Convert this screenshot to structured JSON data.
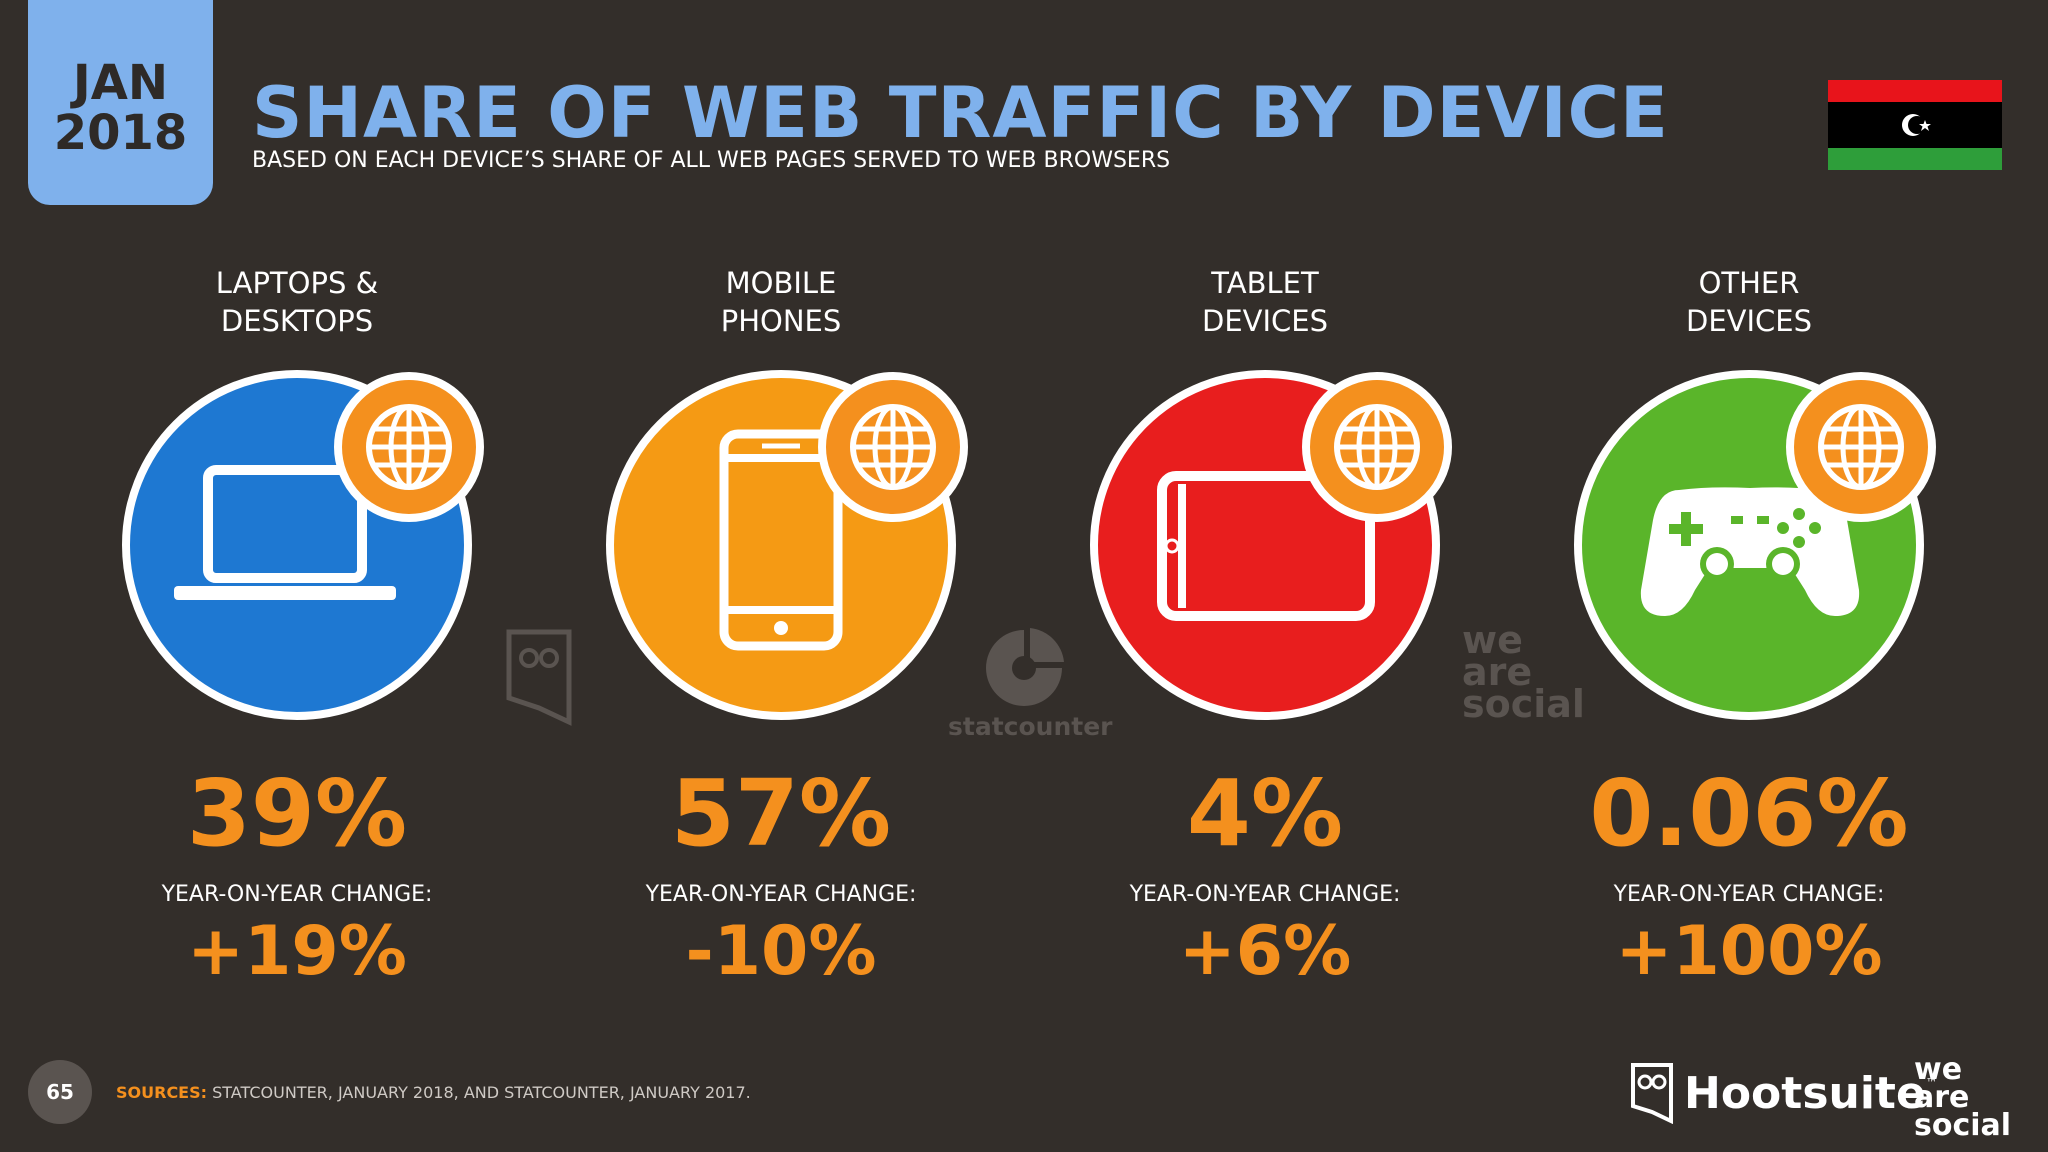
{
  "date": {
    "month": "JAN",
    "year": "2018"
  },
  "title": "SHARE OF WEB TRAFFIC BY DEVICE",
  "subtitle": "BASED ON EACH DEVICE’S SHARE OF ALL WEB PAGES SERVED TO WEB BROWSERS",
  "flag": {
    "top_color": "#e8141b",
    "middle_color": "#000000",
    "bottom_color": "#2e9e3a",
    "symbol": "☪"
  },
  "devices": [
    {
      "label_line1": "LAPTOPS &",
      "label_line2": "DESKTOPS",
      "percent": "39%",
      "yoy_label": "YEAR-ON-YEAR CHANGE:",
      "yoy_value": "+19%",
      "color": "#1e78d2",
      "icon": "laptop-icon"
    },
    {
      "label_line1": "MOBILE",
      "label_line2": "PHONES",
      "percent": "57%",
      "yoy_label": "YEAR-ON-YEAR CHANGE:",
      "yoy_value": "-10%",
      "color": "#f59a14",
      "icon": "mobile-phone-icon"
    },
    {
      "label_line1": "TABLET",
      "label_line2": "DEVICES",
      "percent": "4%",
      "yoy_label": "YEAR-ON-YEAR CHANGE:",
      "yoy_value": "+6%",
      "color": "#e81e1e",
      "icon": "tablet-icon"
    },
    {
      "label_line1": "OTHER",
      "label_line2": "DEVICES",
      "percent": "0.06%",
      "yoy_label": "YEAR-ON-YEAR CHANGE:",
      "yoy_value": "+100%",
      "color": "#5ab52a",
      "icon": "game-controller-icon"
    }
  ],
  "accent_color": "#f4901e",
  "title_color": "#7fb1ec",
  "watermarks": {
    "statcounter": "statcounter",
    "we": "we",
    "are": "are",
    "social": "social"
  },
  "page_number": "65",
  "sources_label": "SOURCES:",
  "sources_text": " STATCOUNTER, JANUARY 2018, AND STATCOUNTER, JANUARY 2017.",
  "footer": {
    "hootsuite": "Hootsuite",
    "tm": "™",
    "was_we": "we",
    "was_are": "are",
    "was_social": "social"
  }
}
